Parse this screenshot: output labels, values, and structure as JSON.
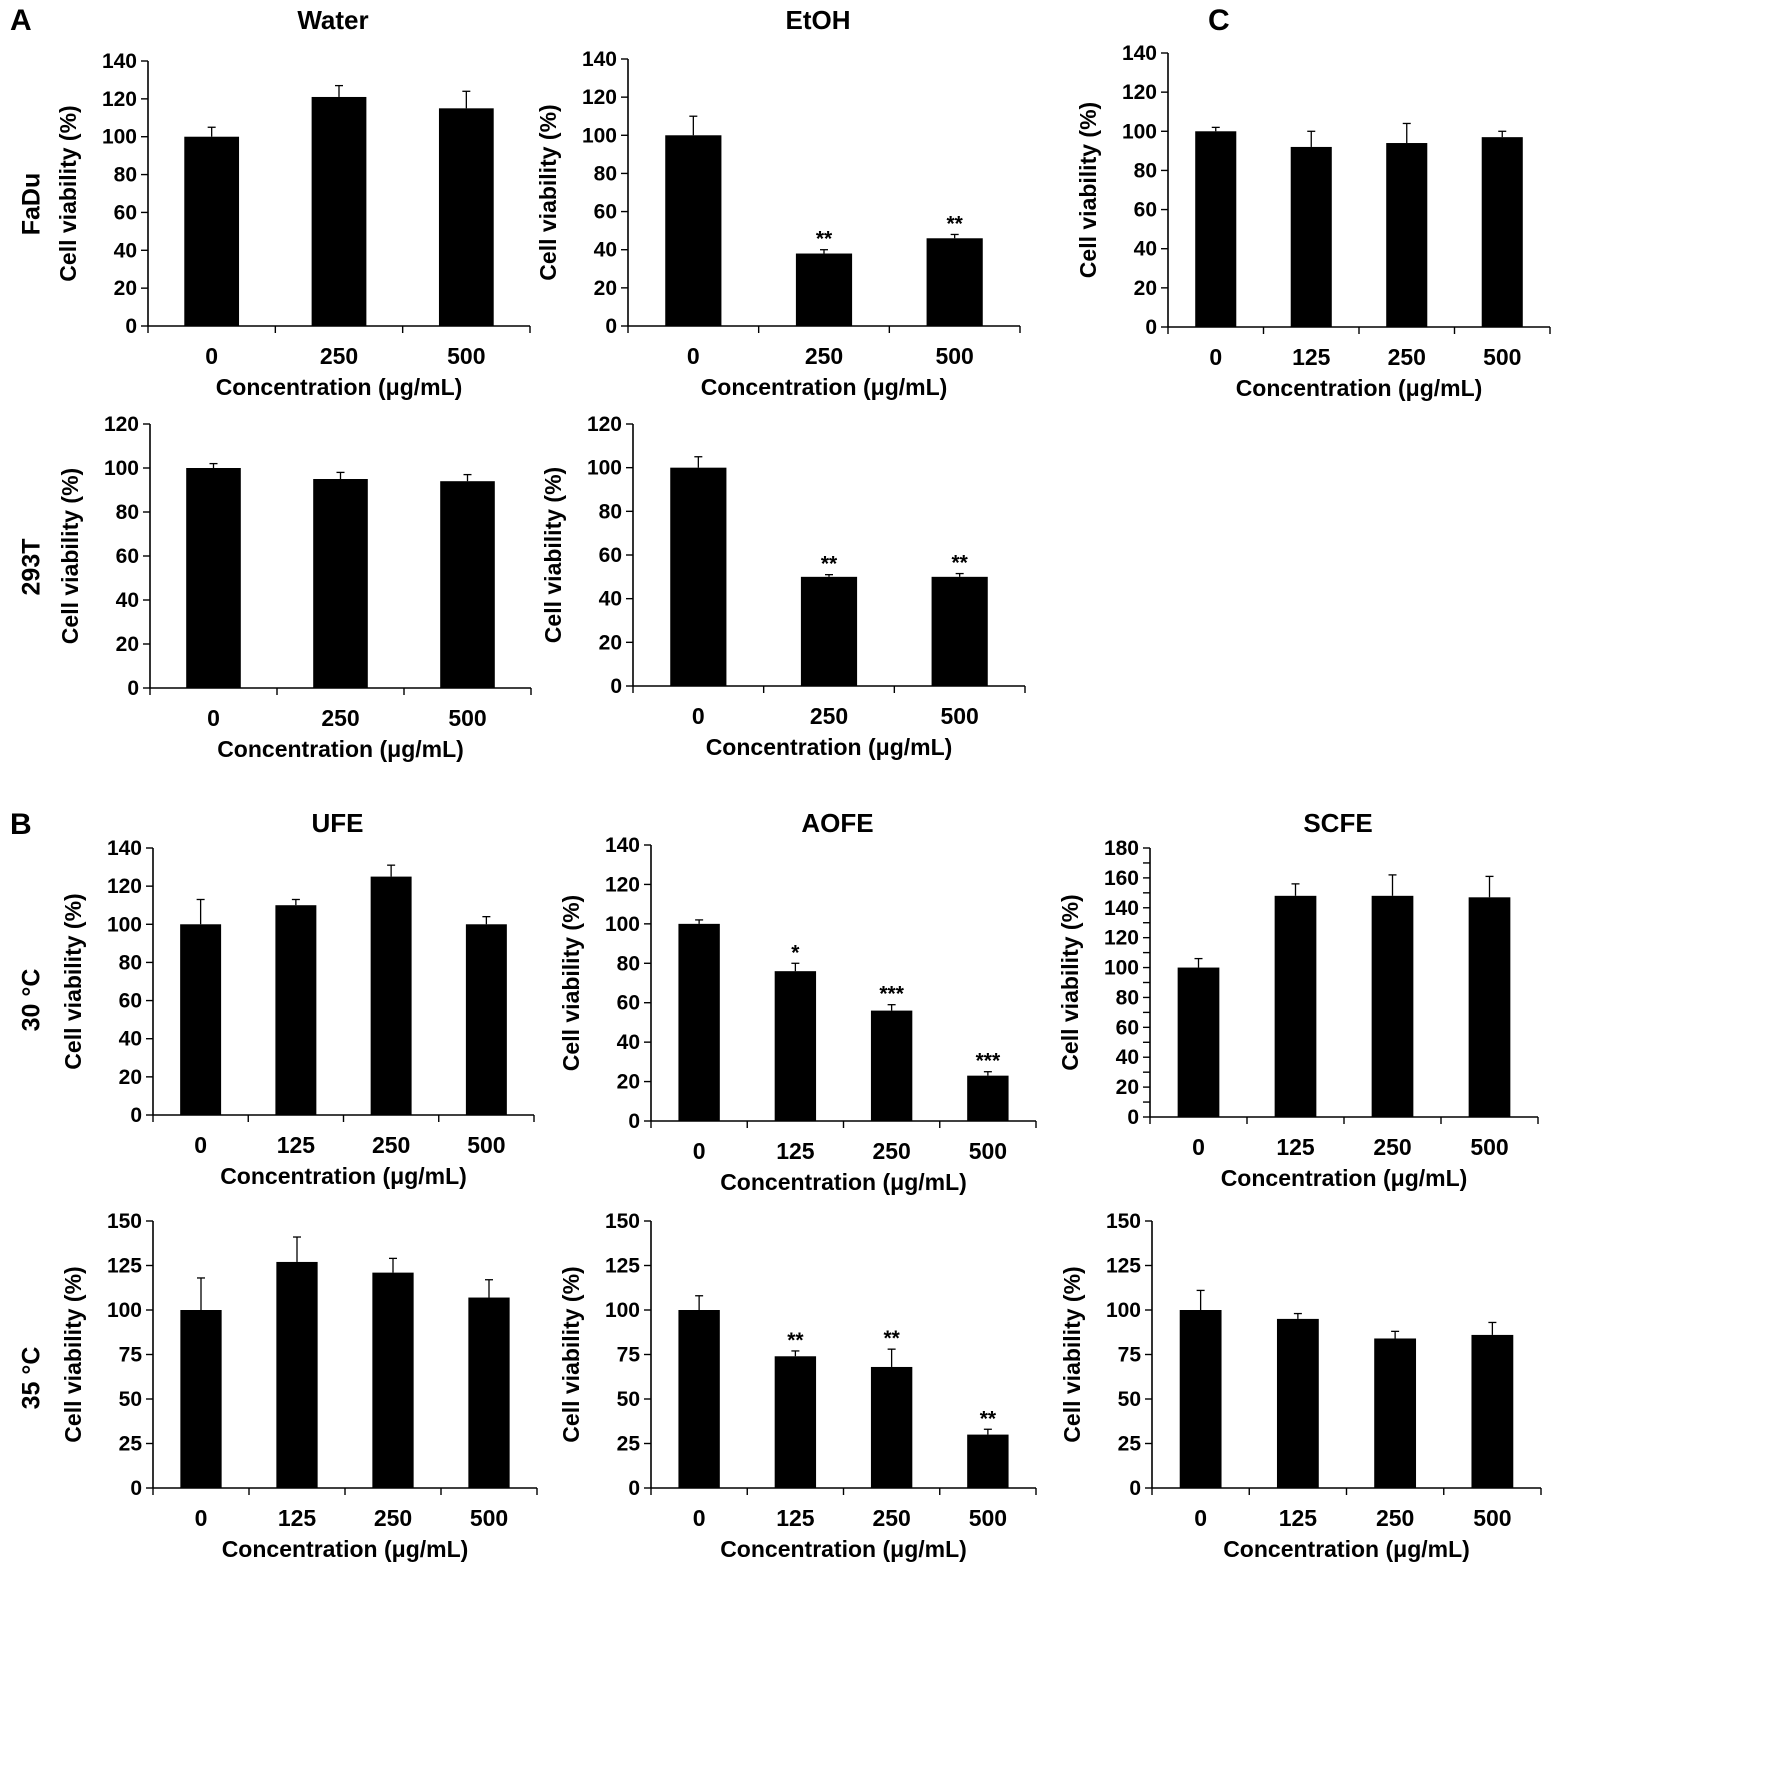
{
  "figure": {
    "panel_labels": [
      "A",
      "B",
      "C"
    ],
    "row_labels": [
      "FaDu",
      "293T",
      "30 °C",
      "35 °C"
    ]
  },
  "chart_data": [
    {
      "id": "a-water-fadu",
      "type": "bar",
      "title": "Water",
      "xlabel": "Concentration (μg/mL)",
      "ylabel": "Cell viability (%)",
      "categories": [
        "0",
        "250",
        "500"
      ],
      "values": [
        100,
        121,
        115
      ],
      "errors": [
        5,
        6,
        9
      ],
      "annotations": [
        "",
        "",
        ""
      ],
      "ylim": [
        0,
        140
      ],
      "yticks": [
        0,
        20,
        40,
        60,
        80,
        100,
        120,
        140
      ]
    },
    {
      "id": "a-etoh-fadu",
      "type": "bar",
      "title": "EtOH",
      "xlabel": "Concentration (μg/mL)",
      "ylabel": "Cell viability (%)",
      "categories": [
        "0",
        "250",
        "500"
      ],
      "values": [
        100,
        38,
        46
      ],
      "errors": [
        10,
        2,
        2
      ],
      "annotations": [
        "",
        "**",
        "**"
      ],
      "ylim": [
        0,
        140
      ],
      "yticks": [
        0,
        20,
        40,
        60,
        80,
        100,
        120,
        140
      ]
    },
    {
      "id": "c-fadu",
      "type": "bar",
      "title": "",
      "xlabel": "Concentration (μg/mL)",
      "ylabel": "Cell viability (%)",
      "categories": [
        "0",
        "125",
        "250",
        "500"
      ],
      "values": [
        100,
        92,
        94,
        97
      ],
      "errors": [
        2,
        8,
        10,
        3
      ],
      "annotations": [
        "",
        "",
        "",
        ""
      ],
      "ylim": [
        0,
        140
      ],
      "yticks": [
        0,
        20,
        40,
        60,
        80,
        100,
        120,
        140
      ]
    },
    {
      "id": "a-water-293t",
      "type": "bar",
      "title": "",
      "xlabel": "Concentration (μg/mL)",
      "ylabel": "Cell viability (%)",
      "categories": [
        "0",
        "250",
        "500"
      ],
      "values": [
        100,
        95,
        94
      ],
      "errors": [
        2,
        3,
        3
      ],
      "annotations": [
        "",
        "",
        ""
      ],
      "ylim": [
        0,
        120
      ],
      "yticks": [
        0,
        20,
        40,
        60,
        80,
        100,
        120
      ]
    },
    {
      "id": "a-etoh-293t",
      "type": "bar",
      "title": "",
      "xlabel": "Concentration (μg/mL)",
      "ylabel": "Cell viability (%)",
      "categories": [
        "0",
        "250",
        "500"
      ],
      "values": [
        100,
        50,
        50
      ],
      "errors": [
        5,
        1,
        1.5
      ],
      "annotations": [
        "",
        "**",
        "**"
      ],
      "ylim": [
        0,
        120
      ],
      "yticks": [
        0,
        20,
        40,
        60,
        80,
        100,
        120
      ]
    },
    {
      "id": "b-ufe-30",
      "type": "bar",
      "title": "UFE",
      "xlabel": "Concentration (μg/mL)",
      "ylabel": "Cell viability (%)",
      "categories": [
        "0",
        "125",
        "250",
        "500"
      ],
      "values": [
        100,
        110,
        125,
        100
      ],
      "errors": [
        13,
        3,
        6,
        4
      ],
      "annotations": [
        "",
        "",
        "",
        ""
      ],
      "ylim": [
        0,
        140
      ],
      "yticks": [
        0,
        20,
        40,
        60,
        80,
        100,
        120,
        140
      ]
    },
    {
      "id": "b-aofe-30",
      "type": "bar",
      "title": "AOFE",
      "xlabel": "Concentration (μg/mL)",
      "ylabel": "Cell viability (%)",
      "categories": [
        "0",
        "125",
        "250",
        "500"
      ],
      "values": [
        100,
        76,
        56,
        23
      ],
      "errors": [
        2,
        4,
        3,
        2
      ],
      "annotations": [
        "",
        "*",
        "***",
        "***"
      ],
      "ylim": [
        0,
        140
      ],
      "yticks": [
        0,
        20,
        40,
        60,
        80,
        100,
        120,
        140
      ]
    },
    {
      "id": "b-scfe-30",
      "type": "bar",
      "title": "SCFE",
      "xlabel": "Concentration (μg/mL)",
      "ylabel": "Cell viability (%)",
      "categories": [
        "0",
        "125",
        "250",
        "500"
      ],
      "values": [
        100,
        148,
        148,
        147
      ],
      "errors": [
        6,
        8,
        14,
        14
      ],
      "annotations": [
        "",
        "",
        "",
        ""
      ],
      "ylim": [
        0,
        180
      ],
      "yticks": [
        0,
        10,
        20,
        30,
        40,
        50,
        60,
        70,
        80,
        90,
        100,
        110,
        120,
        130,
        140,
        150,
        160,
        170,
        180
      ],
      "ytick_labels": [
        0,
        20,
        40,
        60,
        80,
        100,
        120,
        140,
        160,
        180
      ]
    },
    {
      "id": "b-ufe-35",
      "type": "bar",
      "title": "",
      "xlabel": "Concentration (μg/mL)",
      "ylabel": "Cell viability (%)",
      "categories": [
        "0",
        "125",
        "250",
        "500"
      ],
      "values": [
        100,
        127,
        121,
        107
      ],
      "errors": [
        18,
        14,
        8,
        10
      ],
      "annotations": [
        "",
        "",
        "",
        ""
      ],
      "ylim": [
        0,
        150
      ],
      "yticks": [
        0,
        25,
        50,
        75,
        100,
        125,
        150
      ]
    },
    {
      "id": "b-aofe-35",
      "type": "bar",
      "title": "",
      "xlabel": "Concentration (μg/mL)",
      "ylabel": "Cell viability (%)",
      "categories": [
        "0",
        "125",
        "250",
        "500"
      ],
      "values": [
        100,
        74,
        68,
        30
      ],
      "errors": [
        8,
        3,
        10,
        3
      ],
      "annotations": [
        "",
        "**",
        "**",
        "**"
      ],
      "ylim": [
        0,
        150
      ],
      "yticks": [
        0,
        25,
        50,
        75,
        100,
        125,
        150
      ]
    },
    {
      "id": "b-scfe-35",
      "type": "bar",
      "title": "",
      "xlabel": "Concentration (μg/mL)",
      "ylabel": "Cell viability (%)",
      "categories": [
        "0",
        "125",
        "250",
        "500"
      ],
      "values": [
        100,
        95,
        84,
        86
      ],
      "errors": [
        11,
        3,
        4,
        7
      ],
      "annotations": [
        "",
        "",
        "",
        ""
      ],
      "ylim": [
        0,
        150
      ],
      "yticks": [
        0,
        25,
        50,
        75,
        100,
        125,
        150
      ]
    }
  ]
}
